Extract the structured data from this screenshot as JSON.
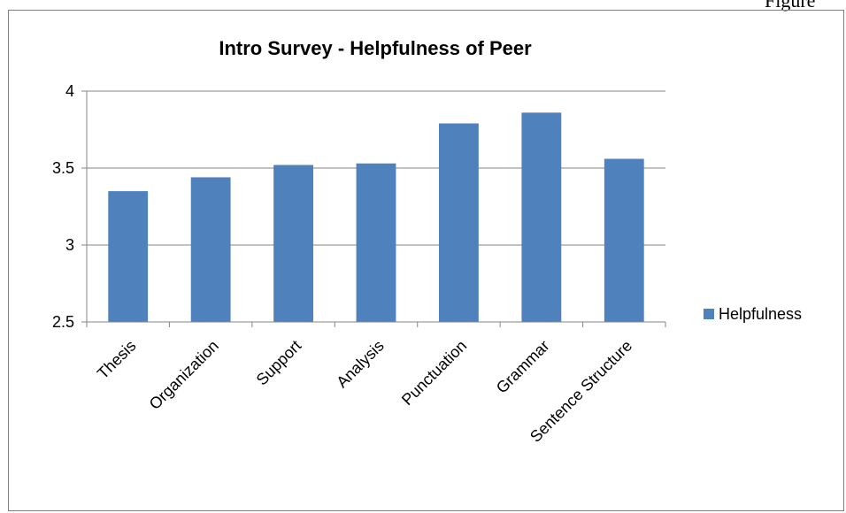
{
  "page_label": "Figure",
  "chart_data": {
    "type": "bar",
    "title": "Intro Survey - Helpfulness of Peer",
    "categories": [
      "Thesis",
      "Organization",
      "Support",
      "Analysis",
      "Punctuation",
      "Grammar",
      "Sentence Structure"
    ],
    "series": [
      {
        "name": "Helpfulness",
        "values": [
          3.35,
          3.44,
          3.52,
          3.53,
          3.79,
          3.86,
          3.56
        ]
      }
    ],
    "ylim": [
      2.5,
      4
    ],
    "yticks": [
      "2.5",
      "3",
      "3.5",
      "4"
    ],
    "ytick_values": [
      2.5,
      3,
      3.5,
      4
    ],
    "grid": true,
    "legend_position": "right",
    "colors": {
      "bar": "#4F81BD",
      "grid": "#868686",
      "axis": "#868686"
    }
  }
}
